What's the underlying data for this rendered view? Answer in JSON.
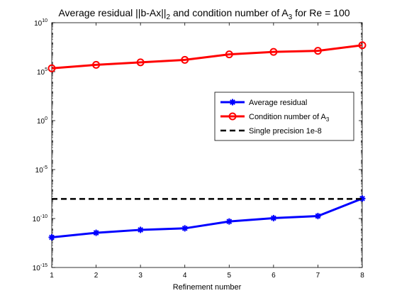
{
  "chart_data": {
    "type": "line",
    "title": "Average residual ||b-Ax||",
    "title_sub": "2",
    "title_mid": " and condition number of A",
    "title_sub2": "3",
    "title_end": " for Re = 100",
    "xlabel": "Refinement number",
    "ylabel": "",
    "x": [
      1,
      2,
      3,
      4,
      5,
      6,
      7,
      8
    ],
    "x_ticks": [
      "1",
      "2",
      "3",
      "4",
      "5",
      "6",
      "7",
      "8"
    ],
    "y_scale": "log",
    "ylim": [
      1e-15,
      10000000000.0
    ],
    "y_tick_base": "10",
    "y_tick_exponents": [
      "10",
      "5",
      "0",
      "-5",
      "-10",
      "-15"
    ],
    "grid": false,
    "legend_position": "right",
    "series": [
      {
        "name": "Average residual",
        "color": "#0000ff",
        "marker": "star",
        "values": [
          1.2e-12,
          3.5e-12,
          7e-12,
          1e-11,
          5e-11,
          1.1e-10,
          1.8e-10,
          1.1e-08
        ]
      },
      {
        "name": "Condition number of A",
        "name_sub": "3",
        "color": "#ff0000",
        "marker": "circle",
        "values": [
          220000.0,
          500000.0,
          900000.0,
          1600000.0,
          5800000.0,
          10500000.0,
          13500000.0,
          50000000.0
        ]
      },
      {
        "name": "Single precision 1e-8",
        "color": "#000000",
        "style": "dashed",
        "values": [
          1e-08,
          1e-08,
          1e-08,
          1e-08,
          1e-08,
          1e-08,
          1e-08,
          1e-08
        ]
      }
    ]
  }
}
